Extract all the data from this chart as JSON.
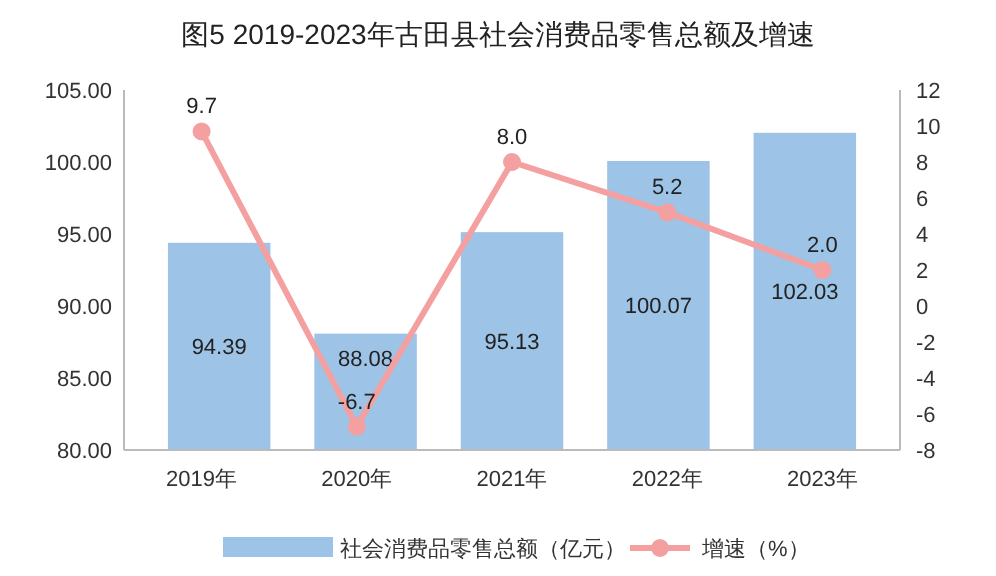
{
  "chart_data": {
    "type": "bar",
    "title": "图5 2019-2023年古田县社会消费品零售总额及增速",
    "categories": [
      "2019年",
      "2020年",
      "2021年",
      "2022年",
      "2023年"
    ],
    "series": [
      {
        "name": "社会消费品零售总额（亿元）",
        "color": "#9dc3e6",
        "values": [
          94.39,
          88.08,
          95.13,
          100.07,
          102.03
        ]
      },
      {
        "name": "增速（%）",
        "type": "line",
        "axis": "y2",
        "color": "#f4a0a0",
        "values": [
          9.7,
          -6.7,
          8.0,
          5.2,
          2.0
        ],
        "value_labels": [
          "9.7",
          "-6.7",
          "8.0",
          "5.2",
          "2.0"
        ]
      }
    ],
    "ylim": [
      80,
      105
    ],
    "yticks": [
      {
        "value": 80,
        "label": "80.00"
      },
      {
        "value": 85,
        "label": "85.00"
      },
      {
        "value": 90,
        "label": "90.00"
      },
      {
        "value": 95,
        "label": "95.00"
      },
      {
        "value": 100,
        "label": "100.00"
      },
      {
        "value": 105,
        "label": "105.00"
      }
    ],
    "y2lim": [
      -8,
      12
    ],
    "y2ticks": [
      -8,
      -6,
      -4,
      -2,
      0,
      2,
      4,
      6,
      8,
      10,
      12
    ],
    "data_labels": true,
    "legend": "bottom",
    "marker": "circle",
    "grid": false
  }
}
